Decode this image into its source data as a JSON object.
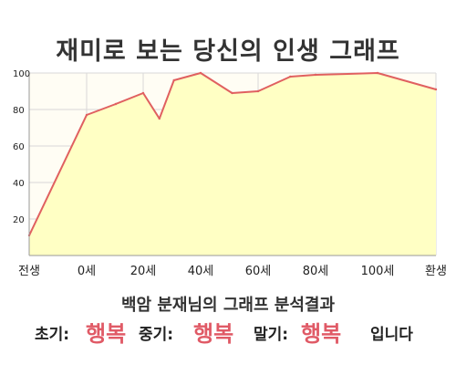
{
  "header": {
    "title": "재미로 보는 당신의 인생 그래프"
  },
  "chart_data": {
    "type": "area",
    "title": "재미로 보는 당신의 인생 그래프",
    "xlabel": "",
    "ylabel": "",
    "ylim": [
      0,
      100
    ],
    "yticks": [
      20,
      40,
      60,
      80,
      100
    ],
    "x_tick_labels": [
      "전생",
      "0세",
      "20세",
      "40세",
      "60세",
      "80세",
      "100세",
      "환생"
    ],
    "grid": true,
    "series": [
      {
        "x": [
          "전생",
          "0세",
          "10세",
          "20세",
          "25세",
          "30세",
          "40세",
          "50세",
          "60세",
          "70세",
          "80세",
          "100세",
          "환생"
        ],
        "values": [
          11,
          77,
          83,
          89,
          75,
          96,
          100,
          89,
          90,
          98,
          99,
          100,
          91
        ]
      }
    ],
    "colors": {
      "line": "#e06060",
      "fill": "#ffffc4",
      "grid": "#d8d8d8"
    }
  },
  "footer": {
    "subtitle": "백암 분재님의 그래프 분석결과",
    "early_label": "초기:",
    "early_value": "행복",
    "middle_label": "중기:",
    "middle_value": "행복",
    "late_label": "말기:",
    "late_value": "행복",
    "suffix": "입니다"
  }
}
